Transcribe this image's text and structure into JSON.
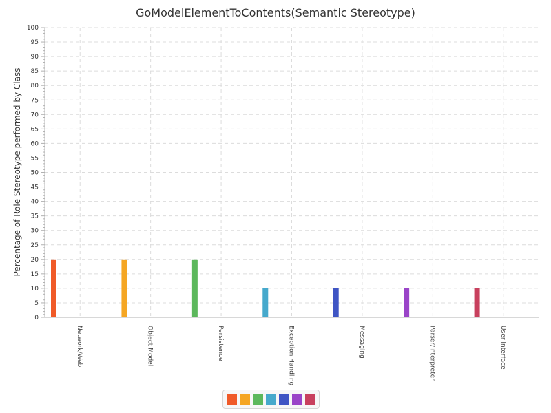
{
  "chart_data": {
    "type": "bar",
    "title": "GoModelElementToContents(Semantic Stereotype)",
    "ylabel": "Percentage of Role Stereotype performed by Class",
    "xlabel": "",
    "ylim": [
      0,
      100
    ],
    "ytick_step": 5,
    "grid": true,
    "legend_position": "bottom-center",
    "categories": [
      "Network/Web",
      "Object Model",
      "Persistence",
      "Exception Handling",
      "Messaging",
      "Parser/Interpreter",
      "User Interface"
    ],
    "values": [
      20,
      20,
      20,
      10,
      10,
      10,
      10
    ],
    "colors": [
      "#f05a28",
      "#f5a623",
      "#5cb85c",
      "#46a9cc",
      "#3f55c4",
      "#9a44c8",
      "#c8405e"
    ]
  }
}
